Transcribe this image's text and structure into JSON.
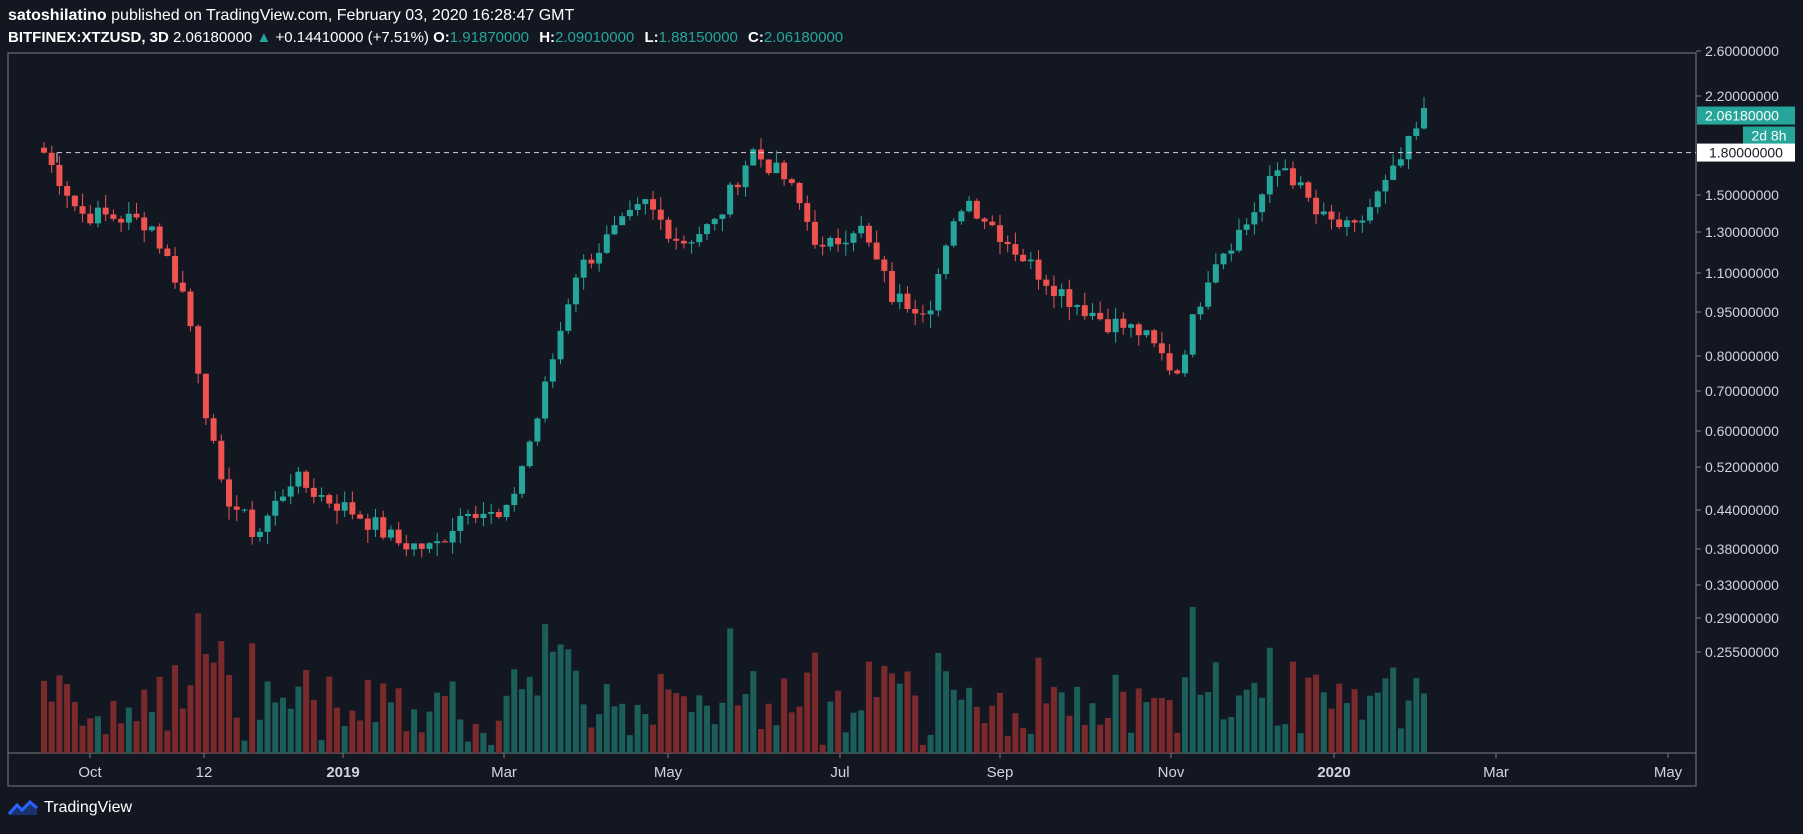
{
  "header": {
    "author": "satoshilatino",
    "published": "published on TradingView.com, February 03, 2020 16:28:47 GMT",
    "symbol": "BITFINEX:XTZUSD, 3D",
    "last_price": "2.06180000",
    "up_arrow": "▲",
    "change": "+0.14410000 (+7.51%)",
    "o_label": "O:",
    "o_value": "1.91870000",
    "h_label": "H:",
    "h_value": "2.09010000",
    "l_label": "L:",
    "l_value": "1.88150000",
    "c_label": "C:",
    "c_value": "2.06180000"
  },
  "footer": {
    "brand": "TradingView"
  },
  "colors": {
    "background": "#131722",
    "up": "#26a69a",
    "down": "#ef5350",
    "vol_up": "#1b5e5a",
    "vol_down": "#7b2a2c",
    "text": "#d1d4dc"
  },
  "chart_data": {
    "type": "candlestick",
    "y_axis": {
      "ticks": [
        "2.60000000",
        "2.20000000",
        "1.50000000",
        "1.30000000",
        "1.10000000",
        "0.95000000",
        "0.80000000",
        "0.70000000",
        "0.60000000",
        "0.52000000",
        "0.44000000",
        "0.38000000",
        "0.33000000",
        "0.29000000",
        "0.25500000"
      ],
      "scale": "log"
    },
    "x_axis": {
      "ticks": [
        {
          "label": "Oct",
          "bold": false
        },
        {
          "label": "12",
          "bold": false
        },
        {
          "label": "2019",
          "bold": true
        },
        {
          "label": "Mar",
          "bold": false
        },
        {
          "label": "May",
          "bold": false
        },
        {
          "label": "Jul",
          "bold": false
        },
        {
          "label": "Sep",
          "bold": false
        },
        {
          "label": "Nov",
          "bold": false
        },
        {
          "label": "2020",
          "bold": true
        },
        {
          "label": "Mar",
          "bold": false
        },
        {
          "label": "May",
          "bold": false
        }
      ]
    },
    "price_labels": {
      "last_price": "2.06180000",
      "countdown": "2d 8h",
      "horizontal_line": "1.80000000"
    },
    "horizontal_line_value": 1.8,
    "anchors": [
      {
        "v": 1.8
      },
      {
        "v": 1.4
      },
      {
        "v": 1.38
      },
      {
        "v": 1.35
      },
      {
        "v": 1.0
      },
      {
        "v": 0.48
      },
      {
        "v": 0.4
      },
      {
        "v": 0.5
      },
      {
        "v": 0.46
      },
      {
        "v": 0.43
      },
      {
        "v": 0.39
      },
      {
        "v": 0.38
      },
      {
        "v": 0.45
      },
      {
        "v": 0.42
      },
      {
        "v": 0.65
      },
      {
        "v": 1.1
      },
      {
        "v": 1.28
      },
      {
        "v": 1.45
      },
      {
        "v": 1.25
      },
      {
        "v": 1.35
      },
      {
        "v": 1.82
      },
      {
        "v": 1.6
      },
      {
        "v": 1.2
      },
      {
        "v": 1.35
      },
      {
        "v": 1.0
      },
      {
        "v": 0.97
      },
      {
        "v": 1.5
      },
      {
        "v": 1.3
      },
      {
        "v": 1.12
      },
      {
        "v": 1.0
      },
      {
        "v": 0.92
      },
      {
        "v": 0.88
      },
      {
        "v": 0.75
      },
      {
        "v": 1.15
      },
      {
        "v": 1.35
      },
      {
        "v": 1.73
      },
      {
        "v": 1.38
      },
      {
        "v": 1.3
      },
      {
        "v": 1.6
      },
      {
        "v": 2.06
      }
    ]
  }
}
